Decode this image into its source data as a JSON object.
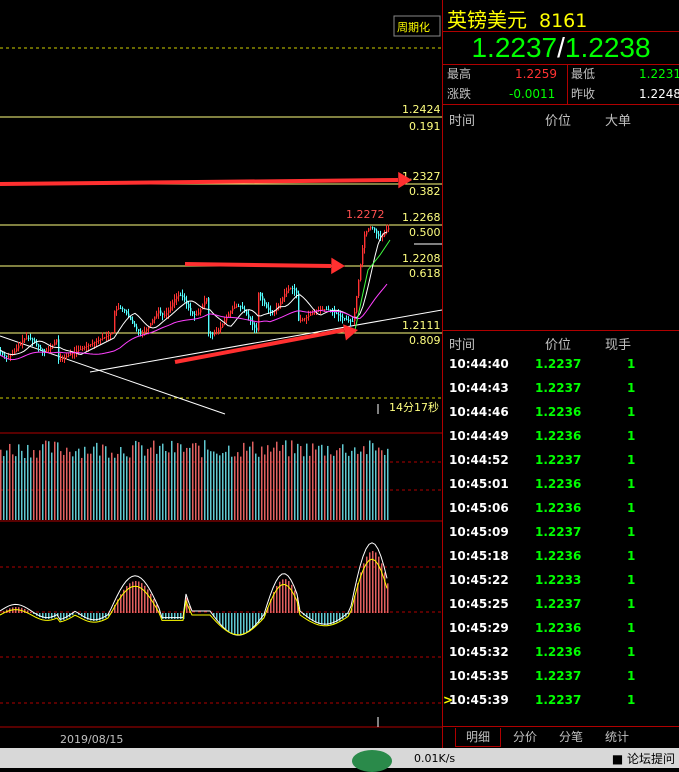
{
  "instrument": {
    "name": "英镑美元",
    "code": "8161"
  },
  "quote": {
    "bid": "1.2237",
    "slash": "/",
    "ask": "1.2238"
  },
  "stats": {
    "high_label": "最高",
    "high": "1.2259",
    "low_label": "最低",
    "low": "1.2231",
    "change_label": "涨跌",
    "change": "-0.0011",
    "prev_close_label": "昨收",
    "prev_close": "1.2248"
  },
  "big_orders": {
    "col_time": "时间",
    "col_price": "价位",
    "col_big": "大单"
  },
  "ticks_header": {
    "col_time": "时间",
    "col_price": "价位",
    "col_volume": "现手"
  },
  "ticks": [
    {
      "time": "10:44:40",
      "price": "1.2237",
      "volume": "1"
    },
    {
      "time": "10:44:43",
      "price": "1.2237",
      "volume": "1"
    },
    {
      "time": "10:44:46",
      "price": "1.2236",
      "volume": "1"
    },
    {
      "time": "10:44:49",
      "price": "1.2236",
      "volume": "1"
    },
    {
      "time": "10:44:52",
      "price": "1.2237",
      "volume": "1"
    },
    {
      "time": "10:45:01",
      "price": "1.2236",
      "volume": "1"
    },
    {
      "time": "10:45:06",
      "price": "1.2236",
      "volume": "1"
    },
    {
      "time": "10:45:09",
      "price": "1.2237",
      "volume": "1"
    },
    {
      "time": "10:45:18",
      "price": "1.2236",
      "volume": "1"
    },
    {
      "time": "10:45:22",
      "price": "1.2233",
      "volume": "1"
    },
    {
      "time": "10:45:25",
      "price": "1.2237",
      "volume": "1"
    },
    {
      "time": "10:45:29",
      "price": "1.2236",
      "volume": "1"
    },
    {
      "time": "10:45:32",
      "price": "1.2236",
      "volume": "1"
    },
    {
      "time": "10:45:35",
      "price": "1.2237",
      "volume": "1"
    },
    {
      "time": "10:45:39",
      "price": "1.2237",
      "volume": "1"
    }
  ],
  "tick_cursor": ">",
  "tabs": [
    "明细",
    "分价",
    "分笔",
    "统计"
  ],
  "chart_data": {
    "type": "candlestick",
    "period_button": "周期化",
    "fib_levels": [
      {
        "price": "1.2424",
        "ratio": "0.191"
      },
      {
        "price": "1.2327",
        "ratio": "0.382"
      },
      {
        "price": "1.2268",
        "ratio": "0.500"
      },
      {
        "price": "1.2208",
        "ratio": "0.618"
      },
      {
        "price": "1.2111",
        "ratio": "0.809"
      }
    ],
    "high_marker": "1.2272",
    "countdown": "14分17秒",
    "date_label": "2019/08/15"
  },
  "statusbar": {
    "speed": "0.01K/s",
    "forum": "论坛提问"
  },
  "colors": {
    "up": "#ff3232",
    "down": "#54ffff",
    "fib_line": "#ffff80",
    "grid": "#b00000",
    "arrow": "#ff3030"
  }
}
